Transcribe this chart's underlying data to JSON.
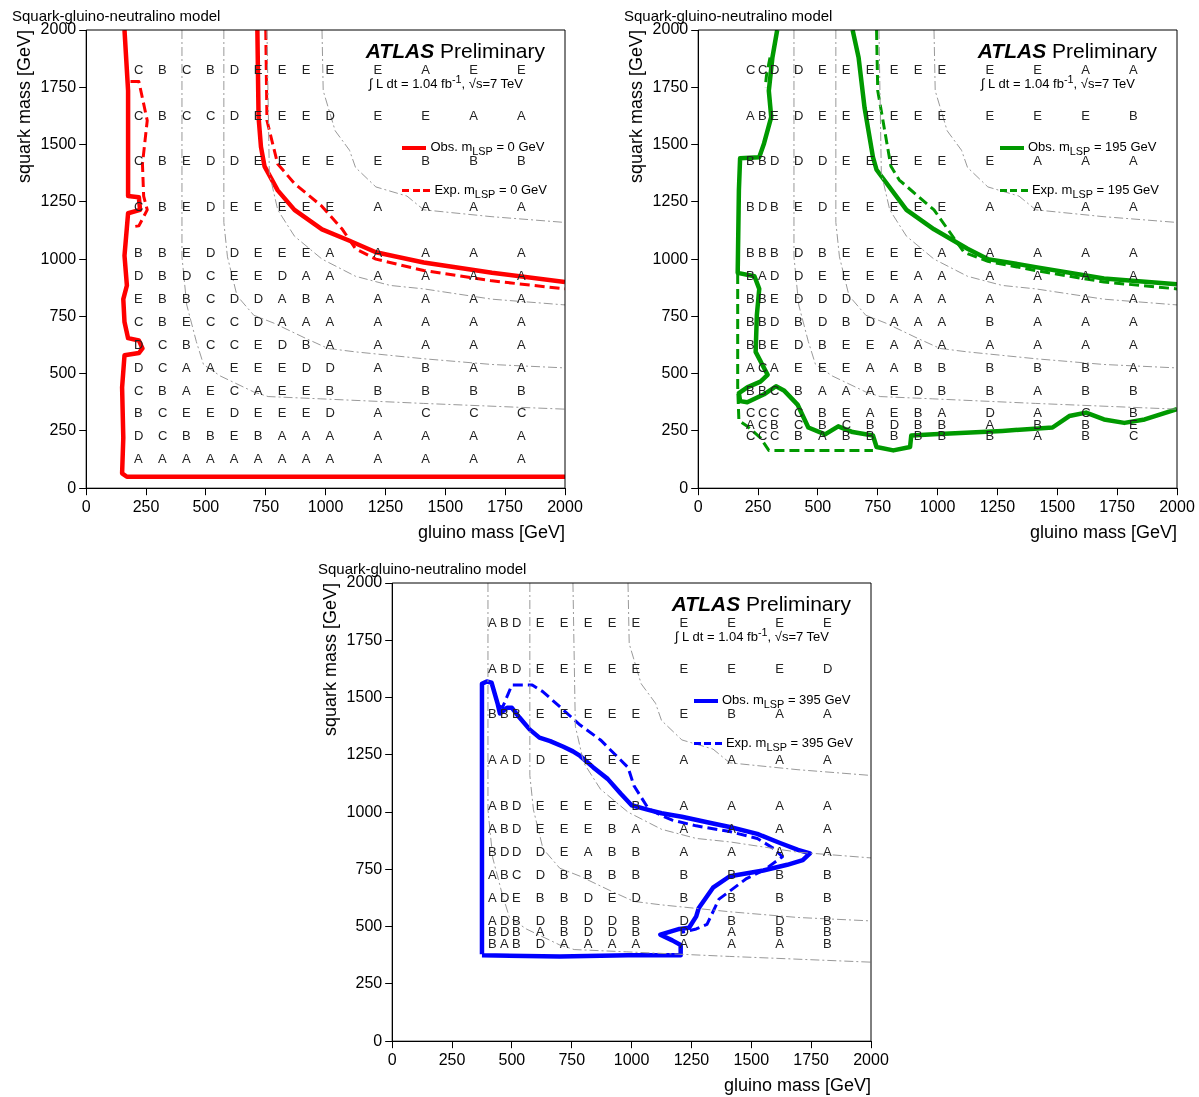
{
  "chart_data": [
    {
      "type": "line",
      "title": "Squark-gluino-neutralino model",
      "xlabel": "gluino mass [GeV]",
      "ylabel": "squark mass [GeV]",
      "xlim": [
        0,
        2000
      ],
      "ylim": [
        0,
        2000
      ],
      "xticks": [
        0,
        250,
        500,
        750,
        1000,
        1250,
        1500,
        1750,
        2000
      ],
      "yticks": [
        0,
        250,
        500,
        750,
        1000,
        1250,
        1500,
        1750,
        2000
      ],
      "legend": "top right",
      "series": [
        {
          "color": "#999999",
          "line_style": "dashed",
          "x": [
            400,
            400,
            420,
            460,
            490,
            560,
            700,
            760,
            980,
            1410,
            2000
          ],
          "values": [
            2000,
            1010,
            800,
            640,
            540,
            490,
            420,
            400,
            390,
            370,
            345
          ]
        },
        {
          "color": "#999999",
          "line_style": "dashed",
          "x": [
            575,
            575,
            590,
            630,
            700,
            785,
            915,
            1010,
            1125,
            1410,
            1695,
            2000
          ],
          "values": [
            2000,
            1160,
            1010,
            840,
            755,
            720,
            655,
            610,
            595,
            565,
            540,
            525
          ]
        },
        {
          "color": "#999999",
          "line_style": "dashed",
          "x": [
            755,
            765,
            800,
            870,
            985,
            1125,
            1270,
            1410,
            1695,
            2000
          ],
          "values": [
            2000,
            1375,
            1215,
            1100,
            1000,
            925,
            885,
            870,
            825,
            800
          ]
        },
        {
          "color": "#999999",
          "line_style": "dashed",
          "x": [
            985,
            990,
            1040,
            1100,
            1125,
            1210,
            1340,
            1410,
            1695,
            2000
          ],
          "values": [
            2000,
            1735,
            1560,
            1475,
            1400,
            1315,
            1275,
            1215,
            1185,
            1160
          ]
        },
        {
          "name": "Obs. m$_{LSP}$ = 0 GeV",
          "color": "#ff0000",
          "line_style": "solid",
          "x": [
            160,
            175,
            175,
            220,
            225,
            175,
            160,
            170,
            155,
            160,
            175,
            220,
            235,
            220,
            160,
            150,
            155,
            150,
            170,
            2000,
            null,
            715,
            720,
            730,
            745,
            800,
            870,
            985,
            1100,
            1210,
            1410,
            1695,
            2000
          ],
          "values": [
            2000,
            1735,
            1275,
            1270,
            1215,
            1200,
            1015,
            885,
            825,
            725,
            655,
            645,
            610,
            590,
            580,
            440,
            220,
            65,
            50,
            50,
            null,
            2000,
            1620,
            1490,
            1405,
            1300,
            1215,
            1130,
            1080,
            1030,
            985,
            940,
            900
          ]
        },
        {
          "name": "Exp. m$_{LSP}$ = 0 GeV",
          "color": "#ff0000",
          "line_style": "dashed",
          "x": [
            185,
            220,
            255,
            235,
            240,
            255,
            220,
            185,
            null,
            750,
            755,
            800,
            870,
            985,
            1070,
            1125,
            1210,
            1410,
            1695,
            2000
          ],
          "values": [
            1775,
            1775,
            1605,
            1415,
            1275,
            1215,
            1145,
            1140,
            null,
            2000,
            1605,
            1415,
            1330,
            1230,
            1130,
            1045,
            1000,
            950,
            905,
            870
          ]
        }
      ],
      "annotations": [
        "ATLAS Preliminary",
        "∫ L dt = 1.04 fb$^{-1}$, √s=7 TeV",
        "C",
        "B",
        "C",
        "B",
        "D",
        "E",
        "E",
        "E",
        "E",
        "E",
        "A",
        "E",
        "E",
        "C",
        "B",
        "C",
        "C",
        "D",
        "E",
        "E",
        "E",
        "D",
        "E",
        "E",
        "A",
        "A",
        "C",
        "B",
        "E",
        "D",
        "D",
        "E",
        "E",
        "E",
        "E",
        "E",
        "B",
        "B",
        "B",
        "C",
        "B",
        "E",
        "D",
        "E",
        "E",
        "E",
        "E",
        "E",
        "A",
        "A",
        "A",
        "A",
        "B",
        "B",
        "E",
        "D",
        "D",
        "E",
        "E",
        "E",
        "A",
        "A",
        "A",
        "A",
        "A",
        "D",
        "B",
        "D",
        "C",
        "E",
        "E",
        "D",
        "A",
        "A",
        "A",
        "A",
        "A",
        "A",
        "E",
        "B",
        "B",
        "C",
        "D",
        "D",
        "A",
        "B",
        "A",
        "A",
        "A",
        "A",
        "A",
        "C",
        "B",
        "E",
        "C",
        "C",
        "D",
        "A",
        "A",
        "A",
        "A",
        "A",
        "A",
        "A",
        "D",
        "C",
        "B",
        "C",
        "C",
        "E",
        "D",
        "B",
        "A",
        "A",
        "A",
        "A",
        "A",
        "D",
        "C",
        "A",
        "A",
        "E",
        "E",
        "E",
        "D",
        "D",
        "A",
        "B",
        "A",
        "A",
        "C",
        "B",
        "A",
        "E",
        "C",
        "A",
        "E",
        "E",
        "B",
        "B",
        "B",
        "B",
        "B",
        "B",
        "C",
        "E",
        "E",
        "D",
        "E",
        "E",
        "E",
        "D",
        "A",
        "C",
        "C",
        "C",
        "D",
        "C",
        "B",
        "B",
        "E",
        "B",
        "A",
        "A",
        "A",
        "A",
        "A",
        "A",
        "A",
        "A",
        "A",
        "A",
        "A",
        "A",
        "A",
        "A",
        "A",
        "A",
        "A",
        "A",
        "A",
        "A"
      ]
    },
    {
      "type": "line",
      "title": "Squark-gluino-neutralino model",
      "xlabel": "gluino mass [GeV]",
      "ylabel": "squark mass [GeV]",
      "xlim": [
        0,
        2000
      ],
      "ylim": [
        0,
        2000
      ],
      "xticks": [
        0,
        250,
        500,
        750,
        1000,
        1250,
        1500,
        1750,
        2000
      ],
      "yticks": [
        0,
        250,
        500,
        750,
        1000,
        1250,
        1500,
        1750,
        2000
      ],
      "legend": "top right",
      "series": [
        {
          "color": "#999999",
          "line_style": "dashed",
          "x": [
            400,
            400,
            420,
            460,
            490,
            560,
            700,
            760,
            980,
            1410,
            2000
          ],
          "values": [
            2000,
            1010,
            800,
            640,
            540,
            490,
            420,
            400,
            390,
            370,
            345
          ]
        },
        {
          "color": "#999999",
          "line_style": "dashed",
          "x": [
            575,
            575,
            590,
            630,
            700,
            785,
            915,
            1010,
            1125,
            1410,
            1695,
            2000
          ],
          "values": [
            2000,
            1160,
            1010,
            840,
            755,
            720,
            655,
            610,
            595,
            565,
            540,
            525
          ]
        },
        {
          "color": "#999999",
          "line_style": "dashed",
          "x": [
            755,
            765,
            800,
            870,
            985,
            1125,
            1270,
            1410,
            1695,
            2000
          ],
          "values": [
            2000,
            1375,
            1215,
            1100,
            1000,
            925,
            885,
            870,
            825,
            800
          ]
        },
        {
          "color": "#999999",
          "line_style": "dashed",
          "x": [
            985,
            990,
            1040,
            1100,
            1125,
            1210,
            1340,
            1410,
            1695,
            2000
          ],
          "values": [
            2000,
            1735,
            1560,
            1475,
            1400,
            1315,
            1275,
            1215,
            1185,
            1160
          ]
        },
        {
          "name": "Obs. m$_{LSP}$ = 195 GeV",
          "color": "#009900",
          "line_style": "solid",
          "x": [
            330,
            310,
            295,
            305,
            275,
            255,
            175,
            170,
            165,
            235,
            255,
            245,
            240,
            290,
            260,
            205,
            170,
            175,
            205,
            275,
            325,
            360,
            415,
            460,
            530,
            585,
            645,
            730,
            745,
            815,
            885,
            890,
            985,
            1270,
            1480,
            1550,
            1620,
            1695,
            1780,
            1865,
            2000,
            null,
            645,
            670,
            695,
            730,
            745,
            870,
            985,
            1125,
            1210,
            1410,
            1695,
            2000
          ],
          "values": [
            2000,
            1880,
            1735,
            1620,
            1505,
            1445,
            1440,
            1300,
            940,
            925,
            870,
            755,
            595,
            495,
            465,
            440,
            415,
            380,
            375,
            410,
            445,
            425,
            365,
            265,
            235,
            270,
            245,
            230,
            180,
            165,
            180,
            230,
            235,
            250,
            265,
            315,
            330,
            300,
            285,
            300,
            345,
            null,
            2000,
            1880,
            1660,
            1445,
            1390,
            1215,
            1130,
            1045,
            1000,
            965,
            915,
            890
          ]
        },
        {
          "name": "Exp. m$_{LSP}$ = 195 GeV",
          "color": "#009900",
          "line_style": "dashed",
          "x": [
            300,
            285,
            280,
            null,
            165,
            165,
            170,
            205,
            260,
            295,
            730,
            null,
            745,
            750,
            805,
            840,
            985,
            1110,
            1210,
            1410,
            1695,
            2000
          ],
          "values": [
            1880,
            1800,
            1750,
            null,
            935,
            440,
            295,
            270,
            220,
            165,
            165,
            null,
            2000,
            1735,
            1405,
            1345,
            1215,
            1030,
            990,
            950,
            900,
            870
          ]
        }
      ],
      "annotations": [
        "ATLAS Preliminary",
        "∫ L dt = 1.04 fb$^{-1}$, √s=7 TeV",
        "C",
        "C",
        "D",
        "D",
        "E",
        "E",
        "E",
        "E",
        "E",
        "E",
        "E",
        "E",
        "A",
        "A",
        "A",
        "B",
        "E",
        "D",
        "E",
        "E",
        "E",
        "E",
        "E",
        "E",
        "E",
        "E",
        "E",
        "B",
        "B",
        "B",
        "D",
        "D",
        "D",
        "E",
        "E",
        "E",
        "E",
        "E",
        "E",
        "A",
        "A",
        "A",
        "B",
        "D",
        "B",
        "E",
        "D",
        "E",
        "E",
        "E",
        "E",
        "E",
        "A",
        "A",
        "A",
        "A",
        "B",
        "B",
        "B",
        "D",
        "B",
        "E",
        "E",
        "E",
        "E",
        "A",
        "A",
        "A",
        "A",
        "A",
        "B",
        "A",
        "D",
        "D",
        "E",
        "E",
        "E",
        "E",
        "A",
        "A",
        "A",
        "A",
        "A",
        "A",
        "B",
        "B",
        "E",
        "D",
        "D",
        "D",
        "D",
        "A",
        "A",
        "A",
        "A",
        "A",
        "A",
        "A",
        "B",
        "B",
        "D",
        "B",
        "D",
        "B",
        "D",
        "A",
        "A",
        "A",
        "B",
        "A",
        "A",
        "A",
        "B",
        "B",
        "E",
        "D",
        "B",
        "E",
        "E",
        "A",
        "A",
        "A",
        "A",
        "A",
        "A",
        "A",
        "A",
        "C",
        "A",
        "E",
        "E",
        "E",
        "A",
        "A",
        "B",
        "B",
        "B",
        "B",
        "B",
        "A",
        "B",
        "B",
        "C",
        "B",
        "A",
        "A",
        "A",
        "E",
        "D",
        "B",
        "B",
        "A",
        "B",
        "B",
        "C",
        "C",
        "C",
        "C",
        "B",
        "E",
        "A",
        "E",
        "B",
        "A",
        "D",
        "A",
        "C",
        "B",
        "A",
        "C",
        "B",
        "C",
        "B",
        "C",
        "B",
        "D",
        "B",
        "B",
        "A",
        "B",
        "B",
        "E",
        "C",
        "C",
        "C",
        "B",
        "A",
        "B",
        "B",
        "B",
        "B",
        "B",
        "B",
        "A",
        "B",
        "C"
      ]
    },
    {
      "type": "line",
      "title": "Squark-gluino-neutralino model",
      "xlabel": "gluino mass [GeV]",
      "ylabel": "squark mass [GeV]",
      "xlim": [
        0,
        2000
      ],
      "ylim": [
        0,
        2000
      ],
      "xticks": [
        0,
        250,
        500,
        750,
        1000,
        1250,
        1500,
        1750,
        2000
      ],
      "yticks": [
        0,
        250,
        500,
        750,
        1000,
        1250,
        1500,
        1750,
        2000
      ],
      "legend": "top right",
      "series": [
        {
          "color": "#999999",
          "line_style": "dashed",
          "x": [
            400,
            400,
            420,
            460,
            490,
            560,
            700,
            760,
            980,
            1410,
            2000
          ],
          "values": [
            2000,
            1010,
            800,
            640,
            540,
            490,
            420,
            400,
            390,
            370,
            345
          ]
        },
        {
          "color": "#999999",
          "line_style": "dashed",
          "x": [
            575,
            575,
            590,
            630,
            700,
            785,
            915,
            1010,
            1125,
            1410,
            1695,
            2000
          ],
          "values": [
            2000,
            1160,
            1010,
            840,
            755,
            720,
            655,
            610,
            595,
            565,
            540,
            525
          ]
        },
        {
          "color": "#999999",
          "line_style": "dashed",
          "x": [
            755,
            765,
            800,
            870,
            985,
            1125,
            1270,
            1410,
            1695,
            2000
          ],
          "values": [
            2000,
            1375,
            1215,
            1100,
            1000,
            925,
            885,
            870,
            825,
            800
          ]
        },
        {
          "color": "#999999",
          "line_style": "dashed",
          "x": [
            985,
            990,
            1040,
            1100,
            1125,
            1210,
            1340,
            1410,
            1695,
            2000
          ],
          "values": [
            2000,
            1735,
            1560,
            1475,
            1400,
            1315,
            1275,
            1215,
            1185,
            1160
          ]
        },
        {
          "name": "Obs. m$_{LSP}$ = 395 GeV",
          "color": "#0000ff",
          "line_style": "solid",
          "x": [
            375,
            375,
            395,
            415,
            440,
            450,
            480,
            500,
            530,
            575,
            615,
            660,
            715,
            755,
            785,
            840,
            900,
            955,
            1000,
            1070,
            1125,
            1210,
            1340,
            1410,
            1525,
            1620,
            1695,
            1745,
            1715,
            1650,
            1550,
            1410,
            1340,
            1280,
            1270,
            1240,
            1200,
            1120,
            1170,
            1205,
            1205,
            985,
            700,
            375
          ],
          "values": [
            380,
            1560,
            1570,
            1565,
            1475,
            1430,
            1455,
            1455,
            1415,
            1360,
            1325,
            1310,
            1285,
            1265,
            1245,
            1195,
            1145,
            1080,
            1030,
            1010,
            995,
            980,
            950,
            935,
            905,
            865,
            835,
            820,
            790,
            770,
            745,
            720,
            670,
            580,
            545,
            495,
            490,
            465,
            440,
            420,
            375,
            375,
            370,
            375
          ]
        },
        {
          "name": "Exp. m$_{LSP}$ = 395 GeV",
          "color": "#0000ff",
          "line_style": "dashed",
          "x": [
            445,
            460,
            500,
            585,
            630,
            700,
            785,
            870,
            985,
            1010,
            1070,
            1125,
            1170,
            1270,
            1410,
            1525,
            1595,
            1630,
            1550,
            1480,
            1410,
            1365,
            1340,
            1315,
            1270,
            1210
          ],
          "values": [
            1465,
            1455,
            1555,
            1555,
            1525,
            1460,
            1380,
            1315,
            1195,
            1115,
            1015,
            985,
            965,
            940,
            915,
            885,
            840,
            805,
            745,
            710,
            655,
            620,
            565,
            510,
            490,
            475
          ]
        }
      ],
      "annotations": [
        "ATLAS Preliminary",
        "∫ L dt = 1.04 fb$^{-1}$, √s=7 TeV",
        "A",
        "B",
        "D",
        "E",
        "E",
        "E",
        "E",
        "E",
        "E",
        "E",
        "E",
        "E",
        "A",
        "B",
        "D",
        "E",
        "E",
        "E",
        "E",
        "E",
        "E",
        "E",
        "E",
        "D",
        "B",
        "B",
        "B",
        "E",
        "E",
        "E",
        "E",
        "E",
        "E",
        "B",
        "A",
        "A",
        "A",
        "A",
        "D",
        "D",
        "E",
        "E",
        "E",
        "E",
        "A",
        "A",
        "A",
        "A",
        "A",
        "B",
        "D",
        "E",
        "E",
        "E",
        "E",
        "B",
        "A",
        "A",
        "A",
        "A",
        "A",
        "B",
        "D",
        "E",
        "E",
        "E",
        "B",
        "A",
        "A",
        "A",
        "A",
        "A",
        "B",
        "D",
        "D",
        "D",
        "E",
        "A",
        "B",
        "B",
        "A",
        "A",
        "A",
        "A",
        "A",
        "B",
        "C",
        "D",
        "B",
        "B",
        "B",
        "B",
        "B",
        "B",
        "B",
        "B",
        "A",
        "D",
        "E",
        "B",
        "B",
        "D",
        "E",
        "D",
        "B",
        "B",
        "B",
        "B",
        "A",
        "D",
        "B",
        "D",
        "B",
        "D",
        "D",
        "B",
        "D",
        "B",
        "D",
        "B",
        "B",
        "D",
        "B",
        "A",
        "B",
        "D",
        "D",
        "B",
        "D",
        "A",
        "B",
        "B",
        "B",
        "A",
        "B",
        "D",
        "A",
        "A",
        "A",
        "A",
        "A",
        "A",
        "A",
        "B"
      ]
    }
  ]
}
